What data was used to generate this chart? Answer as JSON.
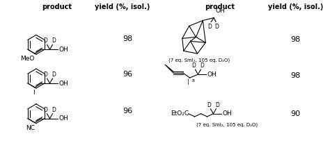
{
  "background": "#ffffff",
  "headers": {
    "left_product": "product",
    "left_yield": "yield (%, isol.)",
    "right_product": "product",
    "right_yield": "yield (%, isol.)"
  },
  "yields": [
    "98",
    "96",
    "96",
    "98",
    "98",
    "90"
  ],
  "notes": {
    "row1_right": "(7 eq. SmI₂, 105 eq. D₂O)",
    "row3_right": "(7 eq. SmI₂, 105 eq. D₂O)"
  },
  "substituents": [
    "MeO",
    "I",
    "NC"
  ],
  "right_labels": [
    "EtO₂C"
  ],
  "fs_header": 7.0,
  "fs_body": 6.5,
  "fs_small": 5.5,
  "fs_yield": 8.0
}
